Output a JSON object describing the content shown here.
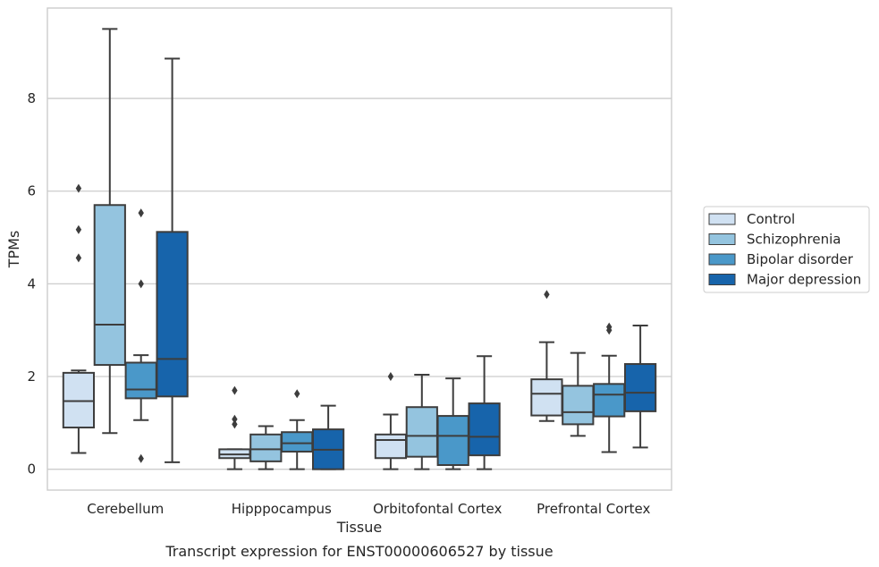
{
  "chart_data": {
    "type": "box",
    "caption": "Transcript expression for ENST00000606527 by tissue",
    "xlabel": "Tissue",
    "ylabel": "TPMs",
    "ylim": [
      -0.45,
      9.95
    ],
    "yticks": [
      0,
      2,
      4,
      6,
      8
    ],
    "grid": "horizontal",
    "legend_position": "right",
    "categories": [
      "Cerebellum",
      "Hipppocampus",
      "Orbitofontal Cortex",
      "Prefrontal Cortex"
    ],
    "series": [
      {
        "name": "Control",
        "color": "#d0e1f2",
        "boxes": [
          {
            "whisker_low": 0.35,
            "q1": 0.9,
            "median": 1.47,
            "q3": 2.08,
            "whisker_high": 2.13,
            "outliers": [
              6.06,
              5.17,
              4.56
            ]
          },
          {
            "whisker_low": 0.0,
            "q1": 0.24,
            "median": 0.32,
            "q3": 0.43,
            "whisker_high": 0.43,
            "outliers": [
              1.7,
              1.08,
              0.97
            ]
          },
          {
            "whisker_low": 0.0,
            "q1": 0.24,
            "median": 0.63,
            "q3": 0.75,
            "whisker_high": 1.18,
            "outliers": [
              2.0
            ]
          },
          {
            "whisker_low": 1.04,
            "q1": 1.16,
            "median": 1.63,
            "q3": 1.94,
            "whisker_high": 2.74,
            "outliers": [
              3.77
            ]
          }
        ]
      },
      {
        "name": "Schizophrenia",
        "color": "#94c4df",
        "boxes": [
          {
            "whisker_low": 0.78,
            "q1": 2.25,
            "median": 3.12,
            "q3": 5.7,
            "whisker_high": 9.5,
            "outliers": []
          },
          {
            "whisker_low": 0.0,
            "q1": 0.17,
            "median": 0.43,
            "q3": 0.75,
            "whisker_high": 0.93,
            "outliers": []
          },
          {
            "whisker_low": 0.0,
            "q1": 0.27,
            "median": 0.72,
            "q3": 1.34,
            "whisker_high": 2.04,
            "outliers": []
          },
          {
            "whisker_low": 0.72,
            "q1": 0.97,
            "median": 1.23,
            "q3": 1.8,
            "whisker_high": 2.51,
            "outliers": []
          }
        ]
      },
      {
        "name": "Bipolar disorder",
        "color": "#4a98c9",
        "boxes": [
          {
            "whisker_low": 1.06,
            "q1": 1.53,
            "median": 1.72,
            "q3": 2.3,
            "whisker_high": 2.46,
            "outliers": [
              5.53,
              4.0,
              0.23
            ]
          },
          {
            "whisker_low": 0.0,
            "q1": 0.38,
            "median": 0.56,
            "q3": 0.8,
            "whisker_high": 1.06,
            "outliers": [
              1.63
            ]
          },
          {
            "whisker_low": 0.0,
            "q1": 0.09,
            "median": 0.72,
            "q3": 1.15,
            "whisker_high": 1.96,
            "outliers": []
          },
          {
            "whisker_low": 0.37,
            "q1": 1.14,
            "median": 1.61,
            "q3": 1.84,
            "whisker_high": 2.45,
            "outliers": [
              3.07,
              3.0
            ]
          }
        ]
      },
      {
        "name": "Major depression",
        "color": "#1764ab",
        "boxes": [
          {
            "whisker_low": 0.15,
            "q1": 1.57,
            "median": 2.38,
            "q3": 5.12,
            "whisker_high": 8.86,
            "outliers": []
          },
          {
            "whisker_low": 0.0,
            "q1": 0.0,
            "median": 0.42,
            "q3": 0.86,
            "whisker_high": 1.37,
            "outliers": []
          },
          {
            "whisker_low": 0.0,
            "q1": 0.3,
            "median": 0.7,
            "q3": 1.42,
            "whisker_high": 2.44,
            "outliers": []
          },
          {
            "whisker_low": 0.47,
            "q1": 1.25,
            "median": 1.65,
            "q3": 2.27,
            "whisker_high": 3.1,
            "outliers": []
          }
        ]
      }
    ]
  }
}
